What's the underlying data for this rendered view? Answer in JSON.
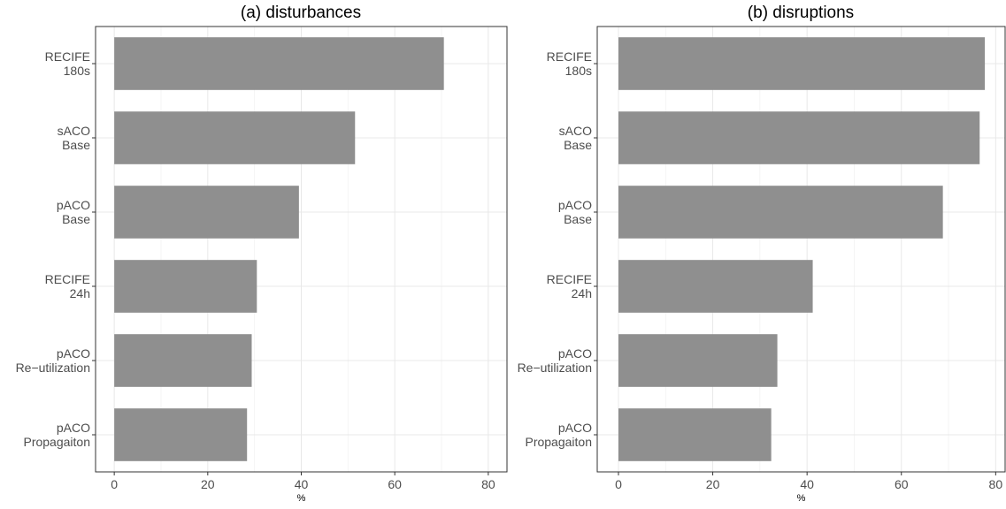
{
  "chart_data": [
    {
      "type": "bar",
      "orientation": "horizontal",
      "title": "(a) disturbances",
      "xlabel": "%",
      "ylabel": "",
      "categories": [
        [
          "RECIFE",
          "180s"
        ],
        [
          "sACO",
          "Base"
        ],
        [
          "pACO",
          "Base"
        ],
        [
          "RECIFE",
          "24h"
        ],
        [
          "pACO",
          "Re−utilization"
        ],
        [
          "pACO",
          "Propagaiton"
        ]
      ],
      "values": [
        70.5,
        51.5,
        39.5,
        30.5,
        29.4,
        28.4
      ],
      "xlim": [
        -4,
        84
      ],
      "xticks": [
        0,
        20,
        40,
        60,
        80
      ],
      "xtick_labels": [
        "0",
        "20",
        "40",
        "60",
        "80"
      ],
      "grid": true,
      "bar_color": "#8f8f8f"
    },
    {
      "type": "bar",
      "orientation": "horizontal",
      "title": "(b) disruptions",
      "xlabel": "%",
      "ylabel": "",
      "categories": [
        [
          "RECIFE",
          "180s"
        ],
        [
          "sACO",
          "Base"
        ],
        [
          "pACO",
          "Base"
        ],
        [
          "RECIFE",
          "24h"
        ],
        [
          "pACO",
          "Re−utilization"
        ],
        [
          "pACO",
          "Propagaiton"
        ]
      ],
      "values": [
        77.7,
        76.6,
        68.8,
        41.2,
        33.7,
        32.4
      ],
      "xlim": [
        -4.5,
        82
      ],
      "xticks": [
        0,
        20,
        40,
        60,
        80
      ],
      "xtick_labels": [
        "0",
        "20",
        "40",
        "60",
        "80"
      ],
      "grid": true,
      "bar_color": "#8f8f8f"
    }
  ]
}
